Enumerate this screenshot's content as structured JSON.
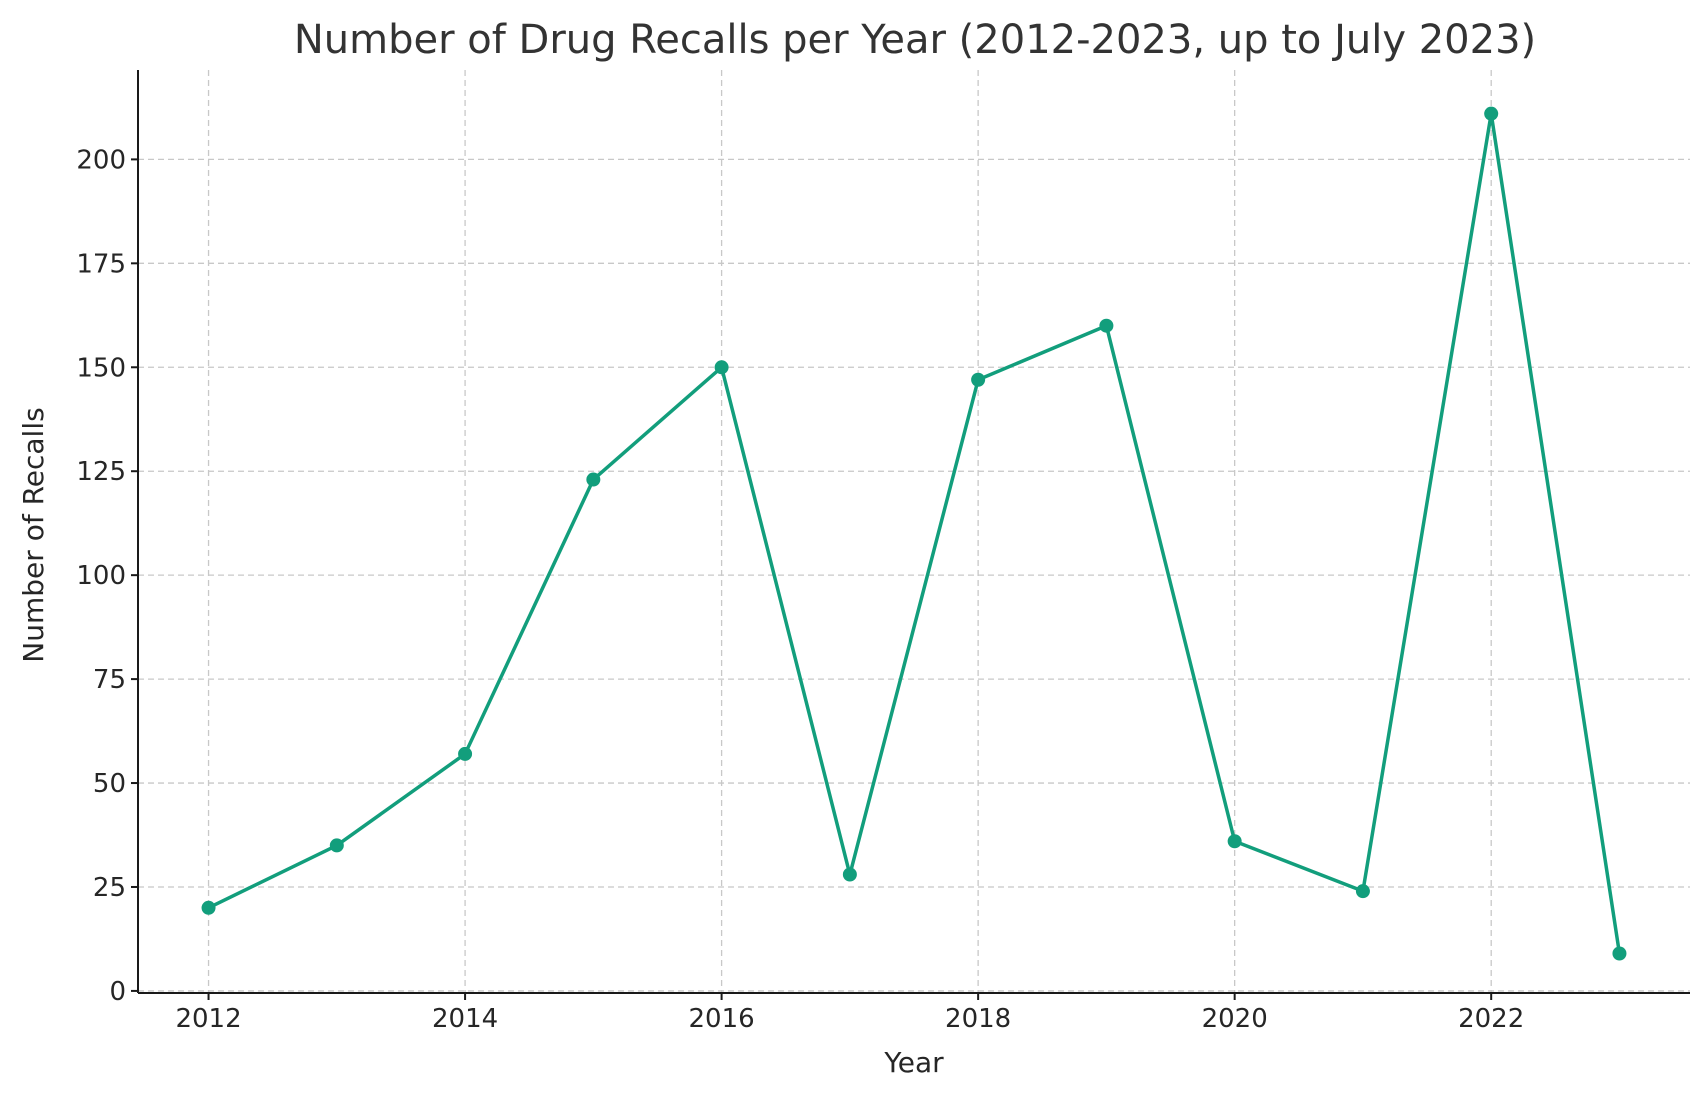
{
  "chart_data": {
    "type": "line",
    "title": "Number of Drug Recalls per Year (2012-2023, up to July 2023)",
    "xlabel": "Year",
    "ylabel": "Number of Recalls",
    "x": [
      2012,
      2013,
      2014,
      2015,
      2016,
      2017,
      2018,
      2019,
      2020,
      2021,
      2022,
      2023
    ],
    "series": [
      {
        "values": [
          20,
          35,
          57,
          123,
          150,
          28,
          147,
          160,
          36,
          24,
          211,
          9
        ]
      }
    ],
    "xlim": [
      2011.45,
      2023.55
    ],
    "ylim": [
      -0.5,
      221.5
    ],
    "xticks": [
      2012,
      2014,
      2016,
      2018,
      2020,
      2022
    ],
    "yticks": [
      0,
      25,
      50,
      75,
      100,
      125,
      150,
      175,
      200
    ],
    "grid": true,
    "legend": "none",
    "color": "#129e7c"
  }
}
